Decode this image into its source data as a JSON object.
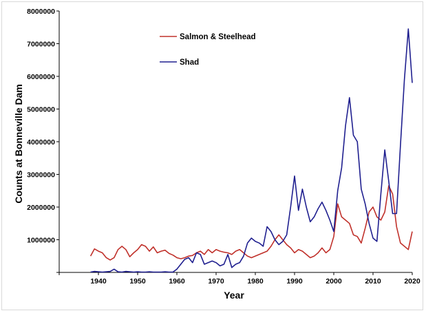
{
  "chart_data": {
    "type": "line",
    "xlabel": "Year",
    "ylabel": "Counts at Bonneville Dam",
    "xlim": [
      1930,
      2020
    ],
    "ylim": [
      0,
      8000000
    ],
    "xticks": [
      1940,
      1950,
      1960,
      1970,
      1980,
      1990,
      2000,
      2010,
      2020
    ],
    "yticks": [
      1000000,
      2000000,
      3000000,
      4000000,
      5000000,
      6000000,
      7000000,
      8000000
    ],
    "grid": false,
    "legend_position": "top-center",
    "series": [
      {
        "name": "Salmon & Steelhead",
        "color": "#c0302a",
        "x": [
          1938,
          1939,
          1940,
          1941,
          1942,
          1943,
          1944,
          1945,
          1946,
          1947,
          1948,
          1949,
          1950,
          1951,
          1952,
          1953,
          1954,
          1955,
          1956,
          1957,
          1958,
          1959,
          1960,
          1961,
          1962,
          1963,
          1964,
          1965,
          1966,
          1967,
          1968,
          1969,
          1970,
          1971,
          1972,
          1973,
          1974,
          1975,
          1976,
          1977,
          1978,
          1979,
          1980,
          1981,
          1982,
          1983,
          1984,
          1985,
          1986,
          1987,
          1988,
          1989,
          1990,
          1991,
          1992,
          1993,
          1994,
          1995,
          1996,
          1997,
          1998,
          1999,
          2000,
          2001,
          2002,
          2003,
          2004,
          2005,
          2006,
          2007,
          2008,
          2009,
          2010,
          2011,
          2012,
          2013,
          2014,
          2015,
          2016,
          2017,
          2018,
          2019,
          2020
        ],
        "values": [
          500000,
          720000,
          650000,
          600000,
          450000,
          380000,
          450000,
          700000,
          800000,
          700000,
          480000,
          600000,
          700000,
          850000,
          800000,
          650000,
          780000,
          600000,
          650000,
          680000,
          580000,
          530000,
          450000,
          420000,
          450000,
          500000,
          520000,
          600000,
          650000,
          550000,
          700000,
          600000,
          700000,
          650000,
          620000,
          600000,
          550000,
          650000,
          700000,
          600000,
          500000,
          450000,
          500000,
          550000,
          600000,
          650000,
          800000,
          1000000,
          1150000,
          1000000,
          850000,
          750000,
          600000,
          700000,
          650000,
          550000,
          450000,
          500000,
          600000,
          750000,
          600000,
          700000,
          1100000,
          2100000,
          1700000,
          1600000,
          1500000,
          1150000,
          1100000,
          900000,
          1350000,
          1850000,
          2000000,
          1700000,
          1600000,
          1850000,
          2650000,
          2400000,
          1400000,
          900000,
          800000,
          700000,
          1250000
        ]
      },
      {
        "name": "Shad",
        "color": "#1f1f8f",
        "x": [
          1938,
          1939,
          1940,
          1941,
          1942,
          1943,
          1944,
          1945,
          1946,
          1947,
          1948,
          1949,
          1950,
          1951,
          1952,
          1953,
          1954,
          1955,
          1956,
          1957,
          1958,
          1959,
          1960,
          1961,
          1962,
          1963,
          1964,
          1965,
          1966,
          1967,
          1968,
          1969,
          1970,
          1971,
          1972,
          1973,
          1974,
          1975,
          1976,
          1977,
          1978,
          1979,
          1980,
          1981,
          1982,
          1983,
          1984,
          1985,
          1986,
          1987,
          1988,
          1989,
          1990,
          1991,
          1992,
          1993,
          1994,
          1995,
          1996,
          1997,
          1998,
          1999,
          2000,
          2001,
          2002,
          2003,
          2004,
          2005,
          2006,
          2007,
          2008,
          2009,
          2010,
          2011,
          2012,
          2013,
          2014,
          2015,
          2016,
          2017,
          2018,
          2019,
          2020
        ],
        "values": [
          10000,
          30000,
          20000,
          10000,
          20000,
          30000,
          100000,
          20000,
          10000,
          30000,
          20000,
          10000,
          20000,
          10000,
          10000,
          20000,
          10000,
          10000,
          10000,
          20000,
          10000,
          10000,
          100000,
          250000,
          400000,
          450000,
          300000,
          600000,
          550000,
          250000,
          300000,
          350000,
          300000,
          200000,
          250000,
          550000,
          150000,
          250000,
          300000,
          500000,
          900000,
          1050000,
          950000,
          900000,
          800000,
          1400000,
          1250000,
          1000000,
          850000,
          950000,
          1150000,
          2000000,
          2950000,
          1900000,
          2550000,
          2000000,
          1550000,
          1700000,
          1950000,
          2150000,
          1900000,
          1600000,
          1250000,
          2500000,
          3200000,
          4500000,
          5350000,
          4200000,
          4000000,
          2550000,
          2100000,
          1500000,
          1050000,
          950000,
          2400000,
          3750000,
          2800000,
          1800000,
          1800000,
          3900000,
          5900000,
          7450000,
          5800000
        ]
      }
    ]
  }
}
